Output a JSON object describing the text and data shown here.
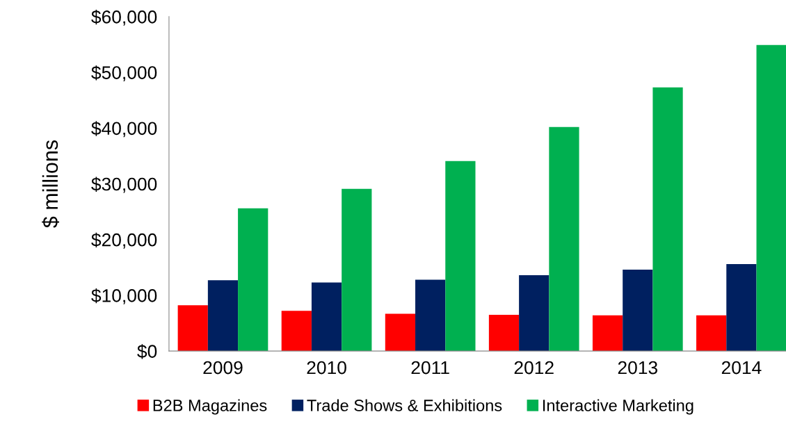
{
  "chart_data": {
    "type": "bar",
    "ylabel": "$ millions",
    "categories": [
      "2009",
      "2010",
      "2011",
      "2012",
      "2013",
      "2014"
    ],
    "series": [
      {
        "name": "B2B Magazines",
        "color": "#ff0000",
        "values": [
          8200,
          7200,
          6700,
          6500,
          6400,
          6400
        ]
      },
      {
        "name": "Trade Shows & Exhibitions",
        "color": "#002060",
        "values": [
          12700,
          12300,
          12800,
          13600,
          14600,
          15600
        ]
      },
      {
        "name": "Interactive Marketing",
        "color": "#00b050",
        "values": [
          25600,
          29100,
          34100,
          40200,
          47300,
          54900
        ]
      }
    ],
    "ylim": [
      0,
      60000
    ],
    "yticks": [
      {
        "value": 0,
        "label": "$0"
      },
      {
        "value": 10000,
        "label": "$10,000"
      },
      {
        "value": 20000,
        "label": "$20,000"
      },
      {
        "value": 30000,
        "label": "$30,000"
      },
      {
        "value": 40000,
        "label": "$40,000"
      },
      {
        "value": 50000,
        "label": "$50,000"
      },
      {
        "value": 60000,
        "label": "$60,000"
      }
    ],
    "grid": false,
    "legend": "bottom"
  }
}
